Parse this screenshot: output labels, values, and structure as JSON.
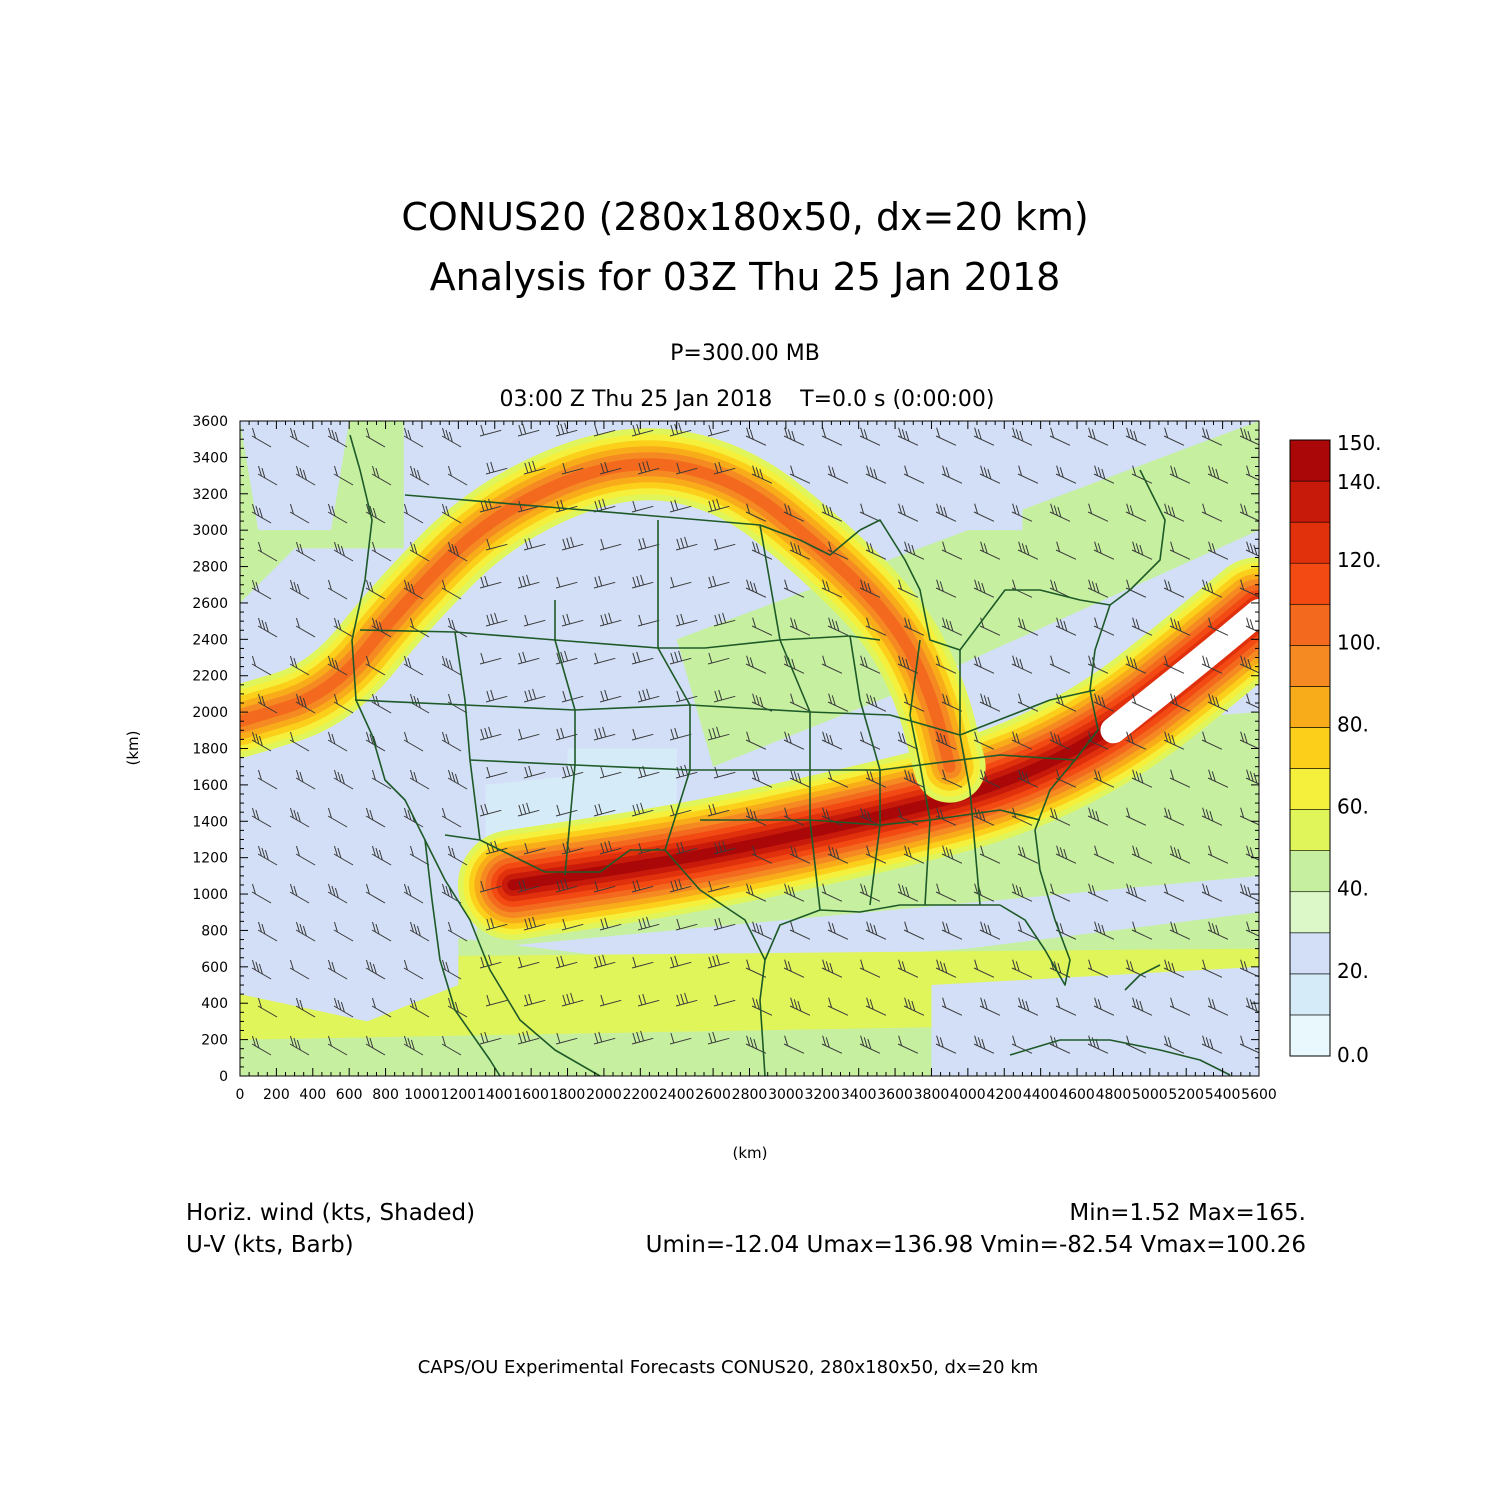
{
  "title": {
    "line1": "CONUS20 (280x180x50, dx=20 km)",
    "line2": "Analysis for 03Z Thu 25 Jan 2018"
  },
  "level": "P=300.00 MB",
  "time_line": "03:00 Z Thu 25 Jan 2018    T=0.0 s (0:00:00)",
  "x_axis_label": "(km)",
  "y_axis_label": "(km)",
  "footer": {
    "field_label": "Horiz. wind (kts, Shaded)",
    "vector_label": "U-V (kts, Barb)",
    "minmax": "Min=1.52 Max=165.",
    "uv_stats": "Umin=-12.04 Umax=136.98 Vmin=-82.54 Vmax=100.26",
    "credit": "CAPS/OU Experimental Forecasts  CONUS20, 280x180x50, dx=20 km"
  },
  "colors": {
    "state_lines": "#1e5a28",
    "barbs": "#3a3a3a"
  },
  "chart_data": {
    "type": "heatmap",
    "field": "horizontal wind speed at 300 mb (kts)",
    "x_range_km": [
      0,
      5600
    ],
    "y_range_km": [
      0,
      3600
    ],
    "x_ticks": [
      "0",
      "200",
      "400",
      "600",
      "800",
      "1000",
      "1200",
      "1400",
      "1600",
      "1800",
      "2000",
      "2200",
      "2400",
      "2600",
      "2800",
      "3000",
      "3200",
      "3400",
      "3600",
      "3800",
      "4000",
      "4200",
      "4400",
      "4600",
      "4800",
      "5000",
      "5200",
      "5400",
      "5600"
    ],
    "y_ticks": [
      "0",
      "200",
      "400",
      "600",
      "800",
      "1000",
      "1200",
      "1400",
      "1600",
      "1800",
      "2000",
      "2200",
      "2400",
      "2600",
      "2800",
      "3000",
      "3200",
      "3400",
      "3600"
    ],
    "colorbar": {
      "labels": [
        "0.0",
        "20.",
        "40.",
        "60.",
        "80.",
        "100.",
        "120.",
        "140.",
        "150."
      ],
      "levels": [
        0,
        10,
        20,
        30,
        40,
        50,
        60,
        70,
        80,
        90,
        100,
        110,
        120,
        130,
        140,
        150
      ],
      "colors": [
        "#e9f8fc",
        "#d6ebf8",
        "#d2dff7",
        "#dcf8c8",
        "#c6f0a0",
        "#e0f55a",
        "#f5f03c",
        "#fcd01a",
        "#f9ac1a",
        "#f68a22",
        "#f36a1e",
        "#f24a12",
        "#e0300c",
        "#c81a0a",
        "#aa0808"
      ]
    },
    "jets": [
      {
        "name": "southern",
        "points_km": [
          [
            1500,
            1050
          ],
          [
            2500,
            1200
          ],
          [
            3500,
            1420
          ],
          [
            4200,
            1600
          ],
          [
            4800,
            1900
          ],
          [
            5300,
            2300
          ],
          [
            5600,
            2550
          ]
        ],
        "peak_kts": 165
      },
      {
        "name": "northern",
        "points_km": [
          [
            0,
            1950
          ],
          [
            500,
            2100
          ],
          [
            900,
            2600
          ],
          [
            1400,
            3100
          ],
          [
            2100,
            3400
          ],
          [
            2700,
            3300
          ],
          [
            3200,
            2900
          ],
          [
            3600,
            2500
          ],
          [
            3800,
            2100
          ],
          [
            3900,
            1700
          ]
        ],
        "peak_kts": 100
      }
    ],
    "stats": {
      "min": 1.52,
      "max": 165,
      "umin": -12.04,
      "umax": 136.98,
      "vmin": -82.54,
      "vmax": 100.26
    }
  }
}
